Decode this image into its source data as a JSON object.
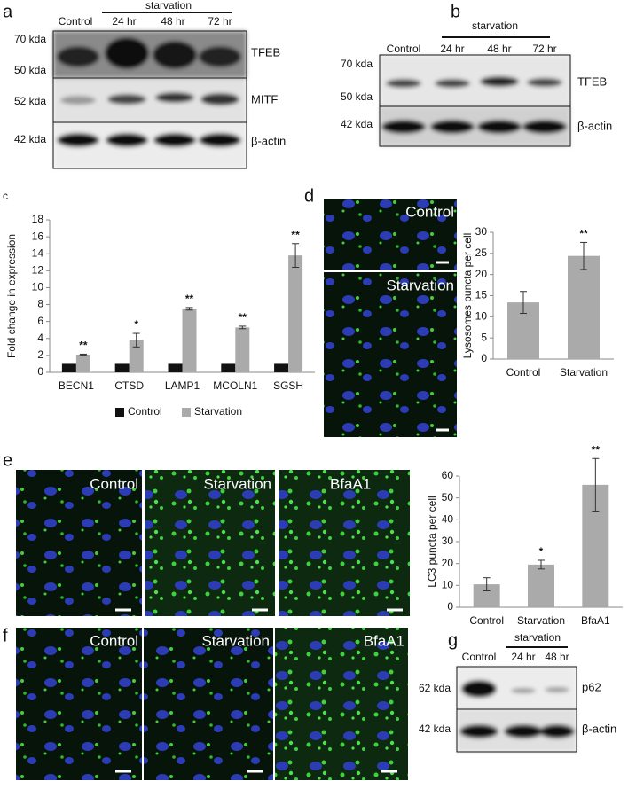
{
  "blots": {
    "a": {
      "label": "a",
      "group": "starvation",
      "lanes": [
        "Control",
        "24 hr",
        "48 hr",
        "72 hr"
      ],
      "markers": [
        "70 kda",
        "50 kda",
        "52 kda",
        "42 kda"
      ],
      "proteins": [
        "TFEB",
        "MITF",
        "β-actin"
      ]
    },
    "b": {
      "label": "b",
      "group": "starvation",
      "lanes": [
        "Control",
        "24 hr",
        "48 hr",
        "72 hr"
      ],
      "markers": [
        "70 kda",
        "50 kda",
        "42 kda"
      ],
      "proteins": [
        "TFEB",
        "β-actin"
      ]
    },
    "g": {
      "label": "g",
      "group": "starvation",
      "lanes": [
        "Control",
        "24 hr",
        "48 hr"
      ],
      "markers": [
        "62 kda",
        "42 kda"
      ],
      "proteins": [
        "p62",
        "β-actin"
      ]
    }
  },
  "images": {
    "d": {
      "label": "d",
      "tiles": [
        "Control",
        "Starvation"
      ]
    },
    "e": {
      "label": "e",
      "tiles": [
        "Control",
        "Starvation",
        "BfaA1"
      ]
    },
    "f": {
      "label": "f",
      "tiles": [
        "Control",
        "Starvation",
        "BfaA1"
      ]
    }
  },
  "chart_data": [
    {
      "type": "bar",
      "label": "c",
      "ylabel": "Fold change in expression",
      "categories": [
        "BECN1",
        "CTSD",
        "LAMP1",
        "MCOLN1",
        "SGSH"
      ],
      "series": [
        {
          "name": "Control",
          "color": "#111111",
          "values": [
            1,
            1,
            1,
            1,
            1
          ]
        },
        {
          "name": "Starvation",
          "color": "#aaaaaa",
          "values": [
            2.1,
            3.8,
            7.5,
            5.3,
            13.8
          ],
          "errors": [
            0.05,
            0.8,
            0.15,
            0.15,
            1.4
          ]
        }
      ],
      "annotations": [
        "**",
        "*",
        "**",
        "**",
        "**"
      ],
      "ylim": [
        0,
        18
      ],
      "yticks": [
        0,
        2,
        4,
        6,
        8,
        10,
        12,
        14,
        16,
        18
      ],
      "legend": "bottom"
    },
    {
      "type": "bar",
      "ylabel": "Lysosomes puncta per cell",
      "categories": [
        "Control",
        "Starvation"
      ],
      "values": [
        13.4,
        24.4
      ],
      "errors": [
        2.6,
        3.2
      ],
      "color": "#aaaaaa",
      "annotations": [
        null,
        "**"
      ],
      "ylim": [
        0,
        30
      ],
      "yticks": [
        0,
        5,
        10,
        15,
        20,
        25,
        30
      ]
    },
    {
      "type": "bar",
      "ylabel": "LC3 puncta per cell",
      "categories": [
        "Control",
        "Starvation",
        "BfaA1"
      ],
      "values": [
        10.5,
        19.5,
        56
      ],
      "errors": [
        3,
        2,
        12
      ],
      "color": "#aaaaaa",
      "annotations": [
        null,
        "*",
        "**"
      ],
      "ylim": [
        0,
        60
      ],
      "yticks": [
        0,
        10,
        20,
        30,
        40,
        50,
        60
      ]
    }
  ]
}
